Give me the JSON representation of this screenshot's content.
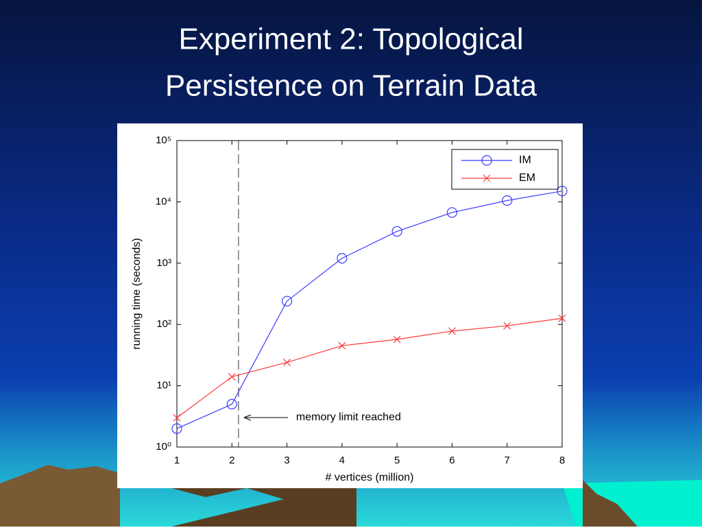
{
  "slide": {
    "title": [
      "Experiment 2: Topological",
      "Persistence on Terrain Data"
    ]
  },
  "chart_data": {
    "type": "line",
    "x": [
      1,
      2,
      3,
      4,
      5,
      6,
      7,
      8
    ],
    "series": [
      {
        "name": "IM",
        "color": "#3a3aff",
        "marker": "circle",
        "values": [
          2,
          5,
          240,
          1200,
          3300,
          6700,
          10500,
          15000
        ]
      },
      {
        "name": "EM",
        "color": "#ff3a3a",
        "marker": "x",
        "values": [
          3,
          14,
          24,
          45,
          57,
          78,
          95,
          126
        ]
      }
    ],
    "xlabel": "# vertices (million)",
    "ylabel": "running time (seconds)",
    "xlim": [
      1,
      8
    ],
    "xticks": [
      1,
      2,
      3,
      4,
      5,
      6,
      7,
      8
    ],
    "ylim": [
      1,
      100000
    ],
    "log_y": true,
    "yticks": [
      {
        "value": 1,
        "label": "10⁰"
      },
      {
        "value": 10,
        "label": "10¹"
      },
      {
        "value": 100,
        "label": "10²"
      },
      {
        "value": 1000,
        "label": "10³"
      },
      {
        "value": 10000,
        "label": "10⁴"
      },
      {
        "value": 100000,
        "label": "10⁵"
      }
    ],
    "legend": "upper right",
    "annotation": {
      "text": "memory limit reached",
      "x": 2.12
    }
  }
}
